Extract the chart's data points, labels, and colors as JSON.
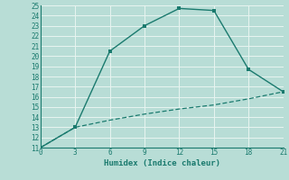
{
  "line1_x": [
    0,
    3,
    6,
    9,
    12,
    15,
    18,
    21
  ],
  "line1_y": [
    11,
    13,
    20.5,
    23,
    24.7,
    24.5,
    18.7,
    16.5
  ],
  "line2_x": [
    0,
    3,
    6,
    9,
    12,
    15,
    18,
    21
  ],
  "line2_y": [
    11,
    13,
    13.7,
    14.3,
    14.8,
    15.2,
    15.8,
    16.5
  ],
  "line_color": "#1a7a6e",
  "bg_color": "#b8ddd6",
  "grid_color": "#e8f4f0",
  "xlabel": "Humidex (Indice chaleur)",
  "xlim": [
    0,
    21
  ],
  "ylim": [
    11,
    25
  ],
  "xticks": [
    0,
    3,
    6,
    9,
    12,
    15,
    18,
    21
  ],
  "yticks": [
    11,
    12,
    13,
    14,
    15,
    16,
    17,
    18,
    19,
    20,
    21,
    22,
    23,
    24,
    25
  ]
}
